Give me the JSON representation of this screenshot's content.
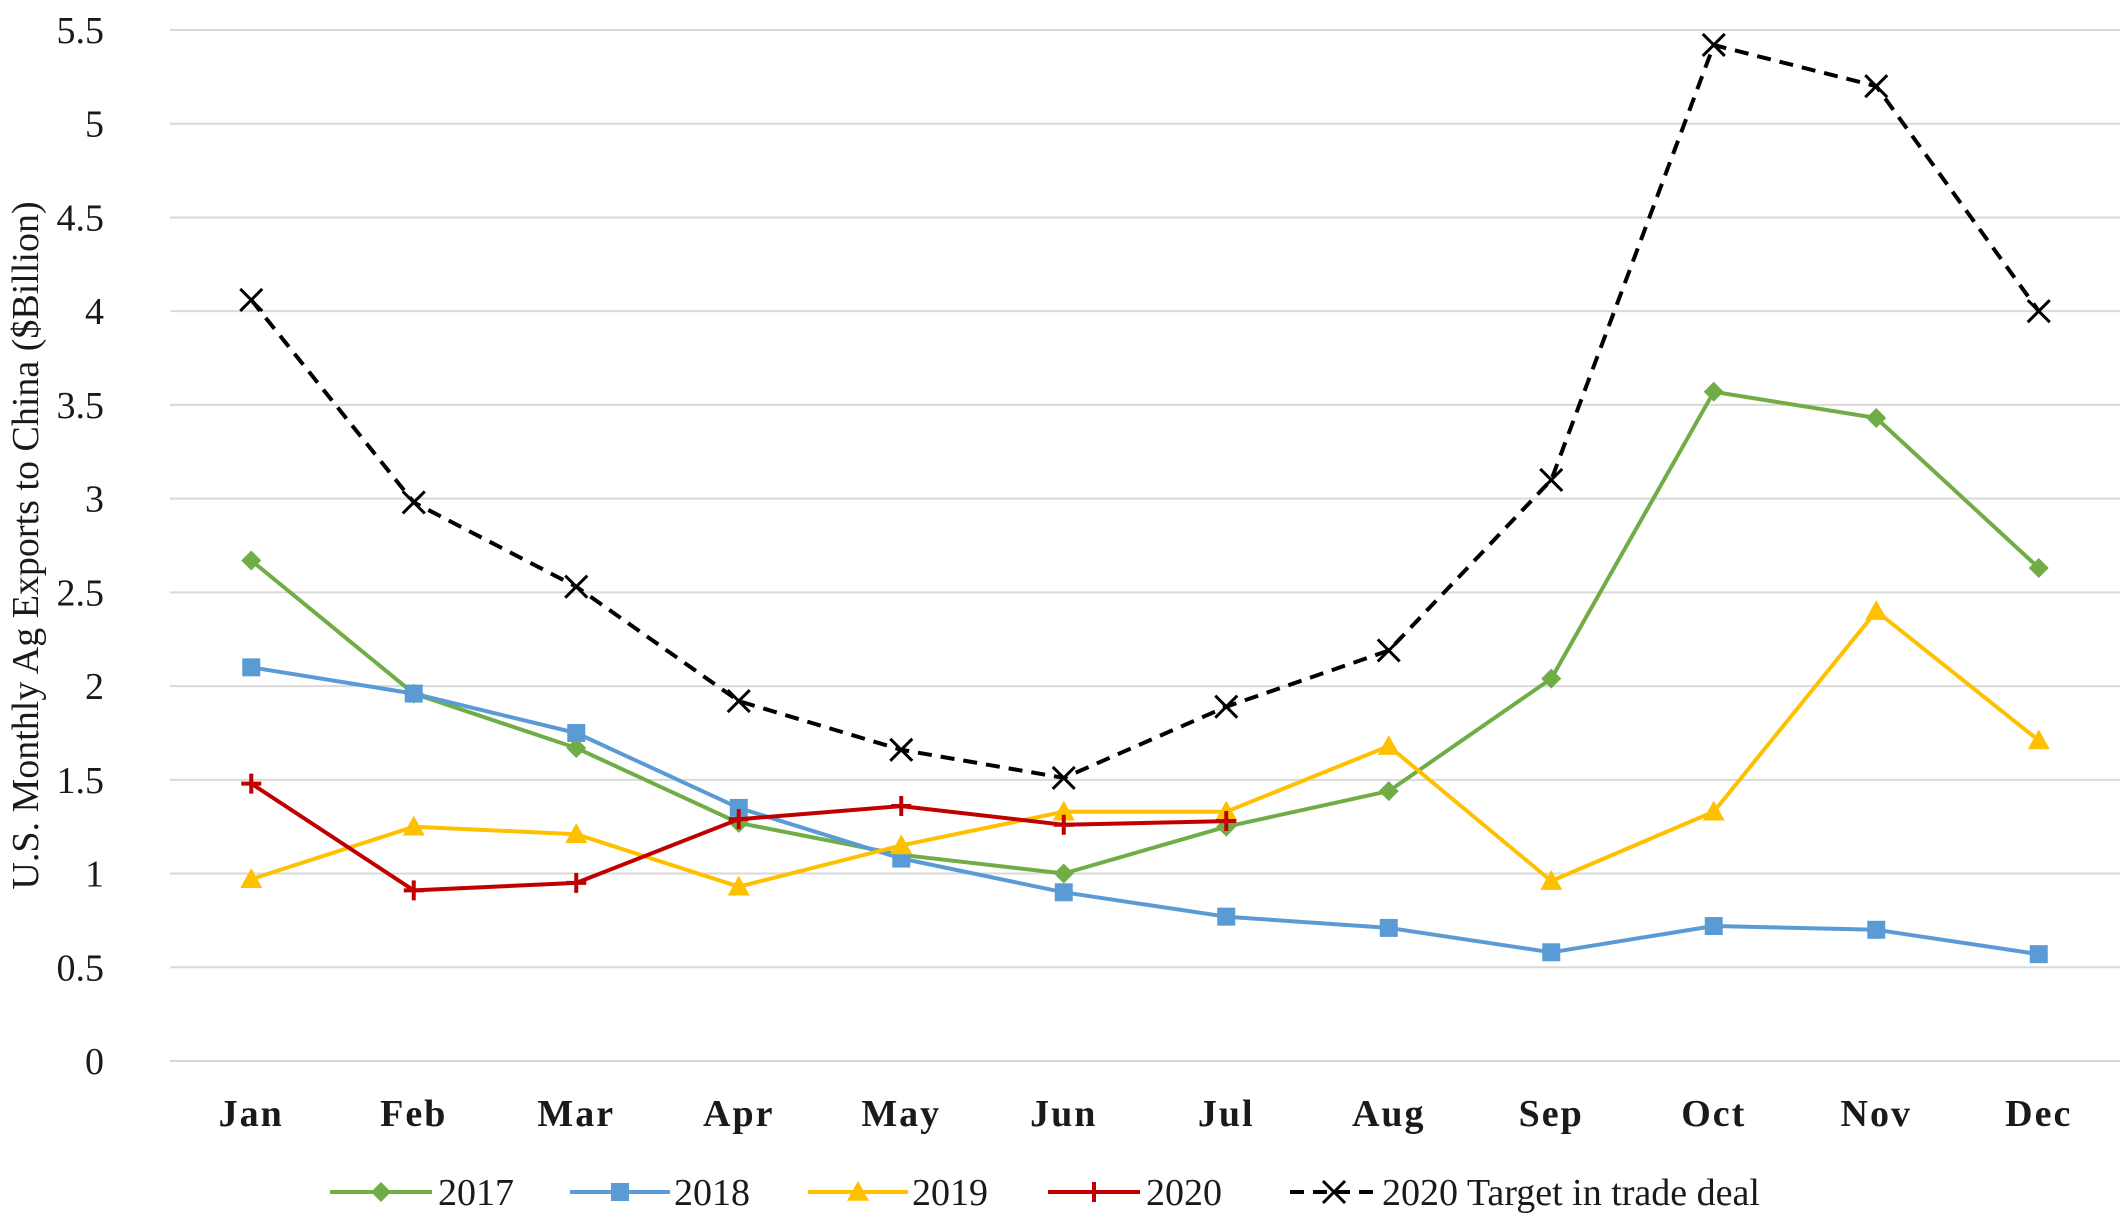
{
  "chart_data": {
    "type": "line",
    "title": "",
    "xlabel": "",
    "ylabel": "U.S. Monthly Ag Exports to China ($Billion)",
    "ylim": [
      0,
      5.5
    ],
    "yticks": [
      "0",
      "0.5",
      "1",
      "1.5",
      "2",
      "2.5",
      "3",
      "3.5",
      "4",
      "4.5",
      "5",
      "5.5"
    ],
    "categories": [
      "Jan",
      "Feb",
      "Mar",
      "Apr",
      "May",
      "Jun",
      "Jul",
      "Aug",
      "Sep",
      "Oct",
      "Nov",
      "Dec"
    ],
    "grid": "horizontal",
    "legend_position": "bottom",
    "series": [
      {
        "name": "2017",
        "color": "#70ad47",
        "marker": "diamond",
        "dash": "solid",
        "values": [
          2.67,
          1.96,
          1.67,
          1.27,
          1.1,
          1.0,
          1.25,
          1.44,
          2.04,
          3.57,
          3.43,
          2.63
        ]
      },
      {
        "name": "2018",
        "color": "#5b9bd5",
        "marker": "square",
        "dash": "solid",
        "values": [
          2.1,
          1.96,
          1.75,
          1.35,
          1.08,
          0.9,
          0.77,
          0.71,
          0.58,
          0.72,
          0.7,
          0.57
        ]
      },
      {
        "name": "2019",
        "color": "#ffc000",
        "marker": "triangle",
        "dash": "solid",
        "values": [
          0.97,
          1.25,
          1.21,
          0.93,
          1.15,
          1.33,
          1.33,
          1.68,
          0.96,
          1.33,
          2.4,
          1.71
        ]
      },
      {
        "name": "2020",
        "color": "#c00000",
        "marker": "plus",
        "dash": "solid",
        "values": [
          1.48,
          0.91,
          0.95,
          1.29,
          1.36,
          1.26,
          1.28,
          null,
          null,
          null,
          null,
          null
        ]
      },
      {
        "name": "2020 Target in trade deal",
        "color": "#000000",
        "marker": "x",
        "dash": "dashed",
        "values": [
          4.06,
          2.98,
          2.53,
          1.92,
          1.66,
          1.51,
          1.89,
          2.19,
          3.1,
          5.42,
          5.2,
          4.0
        ]
      }
    ]
  }
}
